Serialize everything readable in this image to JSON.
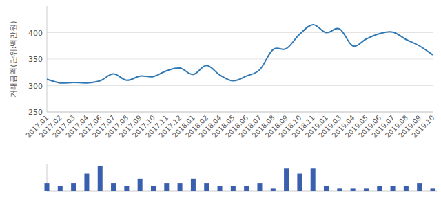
{
  "chart_data": [
    {
      "type": "line",
      "y_label": "거래금액(단위:백만원)",
      "categories": [
        "2017.01",
        "2017.02",
        "2017.03",
        "2017.04",
        "2017.06",
        "2017.07",
        "2017.08",
        "2017.09",
        "2017.10",
        "2017.11",
        "2017.12",
        "2018.01",
        "2018.02",
        "2018.04",
        "2018.05",
        "2018.06",
        "2018.07",
        "2018.08",
        "2018.09",
        "2018.10",
        "2018.11",
        "2019.01",
        "2019.03",
        "2019.04",
        "2019.05",
        "2019.06",
        "2019.07",
        "2019.08",
        "2019.09",
        "2019.10"
      ],
      "values": [
        312,
        305,
        306,
        305,
        309,
        322,
        310,
        318,
        317,
        328,
        333,
        321,
        338,
        320,
        309,
        318,
        330,
        368,
        370,
        397,
        415,
        400,
        407,
        375,
        388,
        398,
        401,
        387,
        375,
        358
      ],
      "color": "#2f78b4",
      "ylim": [
        250,
        450
      ],
      "yticks": [
        250,
        300,
        350,
        400
      ],
      "grid": true
    },
    {
      "type": "bar",
      "categories": [
        "2017.01",
        "2017.02",
        "2017.03",
        "2017.04",
        "2017.06",
        "2017.07",
        "2017.08",
        "2017.09",
        "2017.10",
        "2017.11",
        "2017.12",
        "2018.01",
        "2018.02",
        "2018.04",
        "2018.05",
        "2018.06",
        "2018.07",
        "2018.08",
        "2018.09",
        "2018.10",
        "2018.11",
        "2019.01",
        "2019.03",
        "2019.04",
        "2019.05",
        "2019.06",
        "2019.07",
        "2019.08",
        "2019.09",
        "2019.10"
      ],
      "values": [
        3,
        2,
        3,
        7,
        10,
        3,
        2,
        5,
        2,
        3,
        3,
        5,
        3,
        2,
        2,
        2,
        3,
        1,
        9,
        7,
        9,
        2,
        1,
        1,
        1,
        2,
        2,
        2,
        3,
        1
      ],
      "color": "#3a5fae",
      "ylim": [
        0,
        11
      ],
      "tick_labels": false
    }
  ]
}
